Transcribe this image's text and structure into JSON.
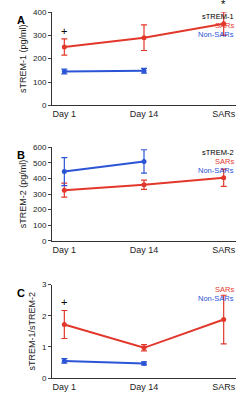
{
  "chart_data": [
    {
      "type": "line",
      "title": "A",
      "legend_title": "sTREM-1",
      "legend": "upper right",
      "categories": [
        "Day 1",
        "Day 14",
        "SARs"
      ],
      "y_label": "sTREM-1 (pg/ml)",
      "ylim": [
        0,
        400
      ],
      "yticks": [
        0,
        100,
        200,
        300,
        400
      ],
      "series": [
        {
          "name": "SARs",
          "color": "#e2382c",
          "values": [
            250,
            290,
            350
          ],
          "errors": [
            35,
            55,
            50
          ]
        },
        {
          "name": "Non-SARs",
          "color": "#2b54d6",
          "values": [
            145,
            148,
            null
          ],
          "errors": [
            10,
            10,
            null
          ]
        }
      ],
      "annotations": [
        {
          "text": "+",
          "category": "Day 1",
          "series": "SARs"
        },
        {
          "text": "*",
          "category": "SARs",
          "series": "SARs"
        }
      ]
    },
    {
      "type": "line",
      "title": "B",
      "legend_title": "sTREM-2",
      "legend": "upper right",
      "categories": [
        "Day 1",
        "Day 14",
        "SARs"
      ],
      "y_label": "sTREM-2 (pg/ml)",
      "ylim": [
        0,
        600
      ],
      "yticks": [
        0,
        100,
        200,
        300,
        400,
        500,
        600
      ],
      "series": [
        {
          "name": "SARs",
          "color": "#e2382c",
          "values": [
            325,
            360,
            405
          ],
          "errors": [
            45,
            30,
            55
          ]
        },
        {
          "name": "Non-SARs",
          "color": "#2b54d6",
          "values": [
            445,
            510,
            null
          ],
          "errors": [
            90,
            75,
            null
          ]
        }
      ],
      "annotations": []
    },
    {
      "type": "line",
      "title": "C",
      "legend": "upper right",
      "categories": [
        "Day 1",
        "Day 14",
        "SARs"
      ],
      "y_label": "sTREM-1/sTREM-2",
      "ylim": [
        0,
        3
      ],
      "yticks": [
        0,
        1,
        2,
        3
      ],
      "series": [
        {
          "name": "SARs",
          "color": "#e2382c",
          "values": [
            1.72,
            0.97,
            1.88
          ],
          "errors": [
            0.45,
            0.1,
            0.78
          ]
        },
        {
          "name": "Non-SARs",
          "color": "#2b54d6",
          "values": [
            0.55,
            0.47,
            null
          ],
          "errors": [
            0.07,
            0.05,
            null
          ]
        }
      ],
      "annotations": [
        {
          "text": "+",
          "category": "Day 1",
          "series": "SARs"
        }
      ]
    }
  ]
}
